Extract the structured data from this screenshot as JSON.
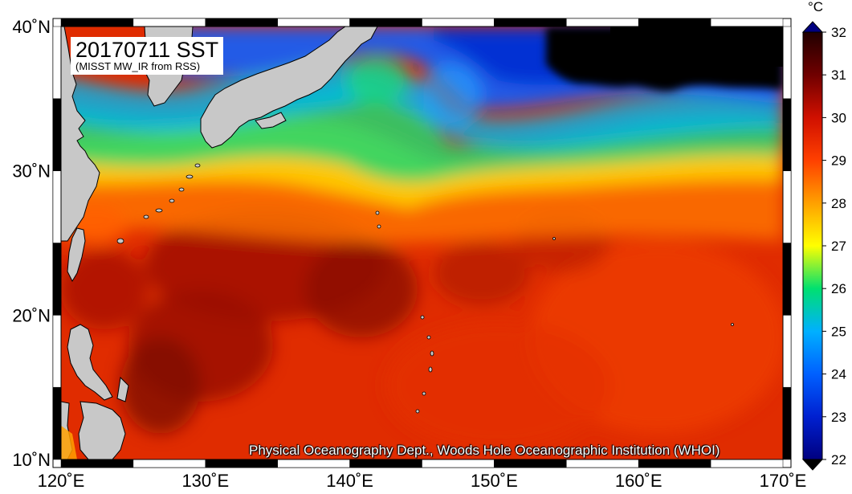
{
  "map": {
    "title": "20170711 SST",
    "subtitle": "(MISST MW_IR from RSS)",
    "credit": "Physical Oceanography Dept., Woods Hole Oceanographic Institution (WHOI)",
    "lon_range": [
      120,
      170
    ],
    "lat_range": [
      10,
      40
    ],
    "lon_ticks": [
      {
        "value": 120,
        "label": "120˚E"
      },
      {
        "value": 130,
        "label": "130˚E"
      },
      {
        "value": 140,
        "label": "140˚E"
      },
      {
        "value": 150,
        "label": "150˚E"
      },
      {
        "value": 160,
        "label": "160˚E"
      },
      {
        "value": 170,
        "label": "170˚E"
      }
    ],
    "lat_ticks": [
      {
        "value": 10,
        "label": "10˚N"
      },
      {
        "value": 20,
        "label": "20˚N"
      },
      {
        "value": 30,
        "label": "30˚N"
      },
      {
        "value": 40,
        "label": "40˚N"
      }
    ],
    "land_color": "#c8c8c8",
    "missing_color": "#000000"
  },
  "colorbar": {
    "unit": "°C",
    "min": 22,
    "max": 32,
    "ticks": [
      "22",
      "23",
      "24",
      "25",
      "26",
      "27",
      "28",
      "29",
      "30",
      "31",
      "32"
    ],
    "colors": [
      {
        "value": 22,
        "color": "#000080"
      },
      {
        "value": 23,
        "color": "#0020d0"
      },
      {
        "value": 24,
        "color": "#0060ff"
      },
      {
        "value": 25,
        "color": "#00b0ff"
      },
      {
        "value": 26,
        "color": "#00e070"
      },
      {
        "value": 27,
        "color": "#ffff00"
      },
      {
        "value": 28,
        "color": "#ffa000"
      },
      {
        "value": 29,
        "color": "#ff4000"
      },
      {
        "value": 30,
        "color": "#d01000"
      },
      {
        "value": 31,
        "color": "#700000"
      },
      {
        "value": 32,
        "color": "#200000"
      }
    ],
    "extend": "both"
  }
}
